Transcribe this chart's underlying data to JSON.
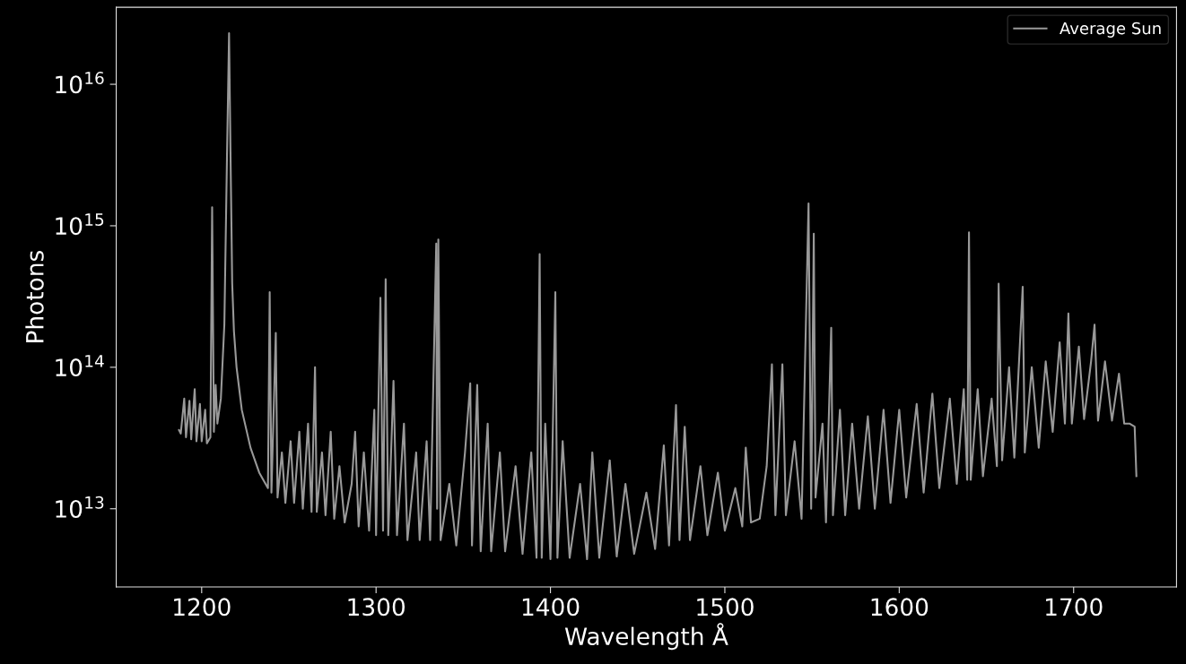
{
  "chart_data": {
    "type": "line",
    "xlabel": "Wavelength Å",
    "ylabel": "Photons",
    "log": "y",
    "grid": false,
    "legend": "top right",
    "marker": "none",
    "line_style": "solid",
    "xlim": [
      1151,
      1759
    ],
    "xticks": [
      1200,
      1300,
      1400,
      1500,
      1600,
      1700
    ],
    "ylim": [
      2800000000000.0,
      3.5e+16
    ],
    "yticks": [
      {
        "value": 10000000000000.0,
        "label": "10$^{13}$"
      },
      {
        "value": 100000000000000.0,
        "label": "10$^{14}$"
      },
      {
        "value": 1000000000000000.0,
        "label": "10$^{15}$"
      },
      {
        "value": 1e+16,
        "label": "10$^{16}$"
      }
    ],
    "series": [
      {
        "name": "Average Sun",
        "color": "#999999",
        "x": [
          1187,
          1188,
          1190,
          1191,
          1193,
          1194,
          1196,
          1197,
          1199,
          1200,
          1202,
          1203,
          1205,
          1206,
          1207,
          1208,
          1209,
          1211,
          1213,
          1214.5,
          1215.7,
          1216.5,
          1217.5,
          1218.5,
          1220,
          1223,
          1228,
          1233,
          1238,
          1239,
          1240,
          1242.5,
          1243.5,
          1246,
          1248,
          1251,
          1253,
          1256,
          1258,
          1261,
          1263,
          1265,
          1266,
          1269,
          1271,
          1274,
          1276,
          1279,
          1282,
          1286,
          1288,
          1290,
          1293,
          1296,
          1299,
          1300,
          1302.5,
          1304,
          1305.5,
          1307,
          1310,
          1312,
          1316,
          1318,
          1323,
          1325,
          1329,
          1331,
          1334.5,
          1335,
          1335.7,
          1337,
          1342,
          1346,
          1351,
          1354,
          1355,
          1358,
          1360,
          1364,
          1366,
          1371,
          1374,
          1380,
          1384,
          1389,
          1392,
          1393.8,
          1395,
          1397,
          1400,
          1402.8,
          1404,
          1407,
          1411,
          1417,
          1421,
          1424,
          1428,
          1434,
          1438,
          1443,
          1448,
          1455,
          1460,
          1465,
          1468,
          1472,
          1474,
          1477,
          1480,
          1486,
          1490,
          1496,
          1500,
          1506,
          1510,
          1512,
          1515,
          1520,
          1524,
          1527,
          1529,
          1533,
          1535,
          1540,
          1544,
          1548,
          1549.5,
          1551,
          1552,
          1556,
          1558,
          1561,
          1562,
          1566,
          1569,
          1573,
          1577,
          1582,
          1586,
          1591,
          1595,
          1600,
          1604,
          1610,
          1614,
          1619,
          1623,
          1629,
          1633,
          1637,
          1639,
          1640,
          1641,
          1645,
          1648,
          1653,
          1656,
          1657,
          1659,
          1663,
          1666,
          1670.8,
          1672,
          1676,
          1680,
          1684,
          1688,
          1692,
          1695,
          1697,
          1699,
          1703,
          1706,
          1710,
          1712,
          1714,
          1718,
          1722,
          1726,
          1729,
          1732,
          1735,
          1736
        ],
        "values": [
          36000000000000.0,
          34000000000000.0,
          60000000000000.0,
          32000000000000.0,
          58000000000000.0,
          31000000000000.0,
          70000000000000.0,
          30000000000000.0,
          55000000000000.0,
          30000000000000.0,
          50000000000000.0,
          29000000000000.0,
          32000000000000.0,
          1350000000000000.0,
          35000000000000.0,
          75000000000000.0,
          40000000000000.0,
          60000000000000.0,
          200000000000000.0,
          3000000000000000.0,
          2.3e+16,
          3500000000000000.0,
          390000000000000.0,
          180000000000000.0,
          100000000000000.0,
          50000000000000.0,
          27000000000000.0,
          18000000000000.0,
          14000000000000.0,
          340000000000000.0,
          13000000000000.0,
          175000000000000.0,
          12000000000000.0,
          25000000000000.0,
          11000000000000.0,
          30000000000000.0,
          11000000000000.0,
          35000000000000.0,
          10000000000000.0,
          40000000000000.0,
          9500000000000.0,
          100000000000000.0,
          9500000000000.0,
          25000000000000.0,
          9000000000000.0,
          35000000000000.0,
          8500000000000.0,
          20000000000000.0,
          8000000000000.0,
          15000000000000.0,
          35000000000000.0,
          7500000000000.0,
          25000000000000.0,
          7000000000000.0,
          50000000000000.0,
          6500000000000.0,
          310000000000000.0,
          7000000000000.0,
          420000000000000.0,
          6500000000000.0,
          80000000000000.0,
          6500000000000.0,
          40000000000000.0,
          6000000000000.0,
          25000000000000.0,
          6000000000000.0,
          30000000000000.0,
          6000000000000.0,
          750000000000000.0,
          10000000000000.0,
          800000000000000.0,
          6000000000000.0,
          15000000000000.0,
          5500000000000.0,
          25000000000000.0,
          77000000000000.0,
          5500000000000.0,
          75000000000000.0,
          5000000000000.0,
          40000000000000.0,
          5000000000000.0,
          25000000000000.0,
          5000000000000.0,
          20000000000000.0,
          4800000000000.0,
          25000000000000.0,
          4500000000000.0,
          630000000000000.0,
          4500000000000.0,
          40000000000000.0,
          4400000000000.0,
          340000000000000.0,
          4500000000000.0,
          30000000000000.0,
          4500000000000.0,
          15000000000000.0,
          4400000000000.0,
          25000000000000.0,
          4500000000000.0,
          22000000000000.0,
          4600000000000.0,
          15000000000000.0,
          4800000000000.0,
          13000000000000.0,
          5200000000000.0,
          28000000000000.0,
          5500000000000.0,
          54000000000000.0,
          6000000000000.0,
          38000000000000.0,
          6000000000000.0,
          20000000000000.0,
          6500000000000.0,
          18000000000000.0,
          7000000000000.0,
          14000000000000.0,
          7500000000000.0,
          27000000000000.0,
          8000000000000.0,
          8500000000000.0,
          20000000000000.0,
          105000000000000.0,
          9000000000000.0,
          105000000000000.0,
          9000000000000.0,
          30000000000000.0,
          8500000000000.0,
          1440000000000000.0,
          10000000000000.0,
          880000000000000.0,
          12000000000000.0,
          40000000000000.0,
          8000000000000.0,
          190000000000000.0,
          9000000000000.0,
          50000000000000.0,
          9000000000000.0,
          40000000000000.0,
          10000000000000.0,
          45000000000000.0,
          10000000000000.0,
          50000000000000.0,
          11000000000000.0,
          50000000000000.0,
          12000000000000.0,
          55000000000000.0,
          13000000000000.0,
          65000000000000.0,
          14000000000000.0,
          60000000000000.0,
          15000000000000.0,
          70000000000000.0,
          16000000000000.0,
          900000000000000.0,
          16000000000000.0,
          70000000000000.0,
          17000000000000.0,
          60000000000000.0,
          20000000000000.0,
          390000000000000.0,
          22000000000000.0,
          100000000000000.0,
          23000000000000.0,
          370000000000000.0,
          25000000000000.0,
          100000000000000.0,
          27000000000000.0,
          110000000000000.0,
          35000000000000.0,
          150000000000000.0,
          40000000000000.0,
          240000000000000.0,
          40000000000000.0,
          140000000000000.0,
          43000000000000.0,
          110000000000000.0,
          200000000000000.0,
          42000000000000.0,
          110000000000000.0,
          42000000000000.0,
          90000000000000.0,
          40000000000000.0,
          40000000000000.0,
          38000000000000.0,
          17000000000000.0
        ]
      }
    ]
  }
}
